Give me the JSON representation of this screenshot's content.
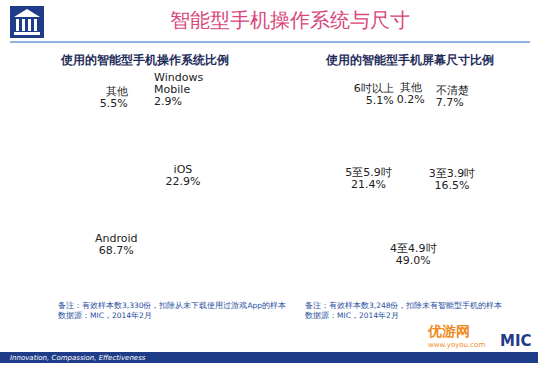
{
  "page": {
    "title": "智能型手机操作系统与尺寸",
    "footer": "Innovation, Compassion, Effectiveness",
    "logo": "MIC",
    "watermark": "优游网",
    "watermark_url": "www.yoyou.com"
  },
  "chart_data": [
    {
      "type": "pie",
      "title": "使用的智能型手机操作系统比例",
      "categories": [
        "Windows Mobile",
        "iOS",
        "Android",
        "其他"
      ],
      "values": [
        2.9,
        22.9,
        68.7,
        5.5
      ],
      "value_labels": [
        "2.9%",
        "22.9%",
        "68.7%",
        "5.5%"
      ],
      "colors": [
        "#8dc63f",
        "#e5147e",
        "#f7a800",
        "#1da1dc"
      ],
      "data_labels": true,
      "notes": [
        "备注：有效样本数3,330份，扣除从未下载使用过游戏App的样本",
        "数据源：MIC，2014年2月"
      ]
    },
    {
      "type": "pie",
      "title": "使用的智能型手机屏幕尺寸比例",
      "categories": [
        "其他",
        "不清楚",
        "3至3.9吋",
        "4至4.9吋",
        "5至5.9吋",
        "6吋以上"
      ],
      "values": [
        0.2,
        7.7,
        16.5,
        49.0,
        21.4,
        5.1
      ],
      "value_labels": [
        "0.2%",
        "7.7%",
        "16.5%",
        "49.0%",
        "21.4%",
        "5.1%"
      ],
      "colors": [
        "#8dc63f",
        "#e5147e",
        "#f0a30a",
        "#29a8e0",
        "#2e7db5",
        "#2a8c8c"
      ],
      "data_labels": true,
      "notes": [
        "备注：有效样本数3,248份，扣除未有智能型手机的样本",
        "数据源：MIC，2014年2月"
      ]
    }
  ]
}
